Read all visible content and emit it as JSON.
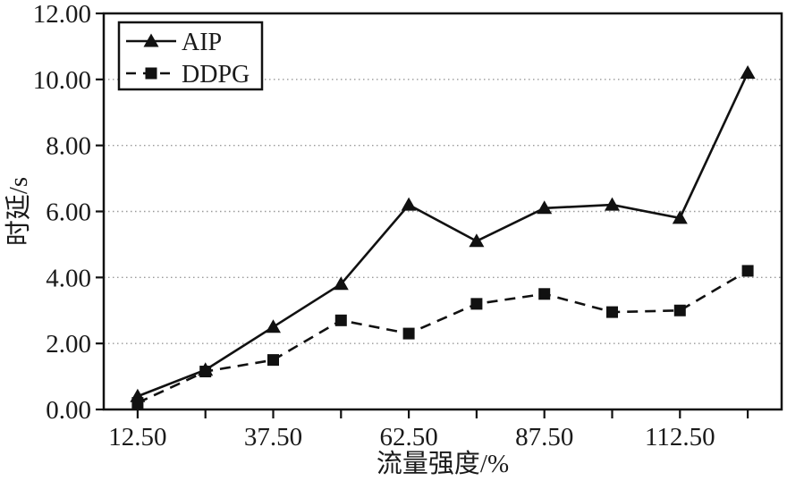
{
  "chart_data": {
    "type": "line",
    "title": "",
    "xlabel": "流量强度/%",
    "ylabel": "时延/s",
    "x": [
      12.5,
      25,
      37.5,
      50,
      62.5,
      75,
      87.5,
      100,
      112.5,
      125
    ],
    "series": [
      {
        "name": "AIP",
        "line": "solid",
        "marker": "triangle",
        "values": [
          0.4,
          1.2,
          2.5,
          3.8,
          6.2,
          5.1,
          6.1,
          6.2,
          5.8,
          10.2
        ]
      },
      {
        "name": "DDPG",
        "line": "dashed",
        "marker": "square",
        "values": [
          0.2,
          1.15,
          1.5,
          2.7,
          2.3,
          3.2,
          3.5,
          2.95,
          3.0,
          4.2
        ]
      }
    ],
    "xlim": [
      6.25,
      131.25
    ],
    "ylim": [
      0,
      12
    ],
    "x_tick_positions": [
      12.5,
      25,
      37.5,
      50,
      62.5,
      75,
      87.5,
      100,
      112.5,
      125
    ],
    "x_labeled_ticks": [
      12.5,
      37.5,
      62.5,
      87.5,
      112.5
    ],
    "x_tick_labels": [
      "12.50",
      "37.50",
      "62.50",
      "87.50",
      "112.50"
    ],
    "y_ticks": [
      0,
      2,
      4,
      6,
      8,
      10,
      12
    ],
    "y_tick_labels": [
      "0.00",
      "2.00",
      "4.00",
      "6.00",
      "8.00",
      "10.00",
      "12.00"
    ],
    "grid": "horizontal dotted at y=2,4,6,8,10",
    "legend": {
      "position": "top-left",
      "entries": [
        "AIP",
        "DDPG"
      ]
    },
    "colors": {
      "series": "#111111",
      "grid": "#9a9a9a",
      "text": "#1a1a1a",
      "frame": "#111111",
      "background": "#ffffff"
    }
  }
}
